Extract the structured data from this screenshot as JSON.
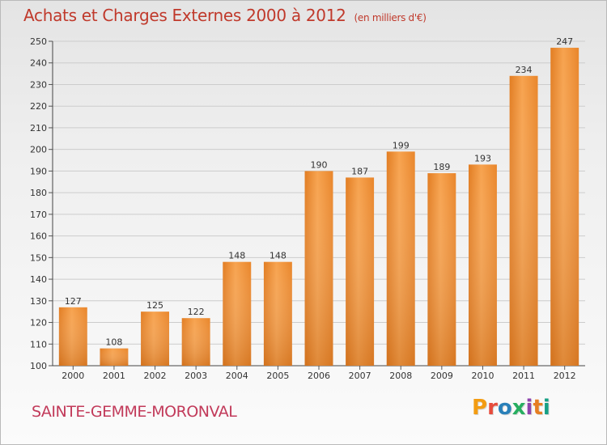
{
  "chart_data": {
    "type": "bar",
    "title": "Achats et Charges Externes 2000 à 2012",
    "unit_note": "(en milliers d'€)",
    "categories": [
      "2000",
      "2001",
      "2002",
      "2003",
      "2004",
      "2005",
      "2006",
      "2007",
      "2008",
      "2009",
      "2010",
      "2011",
      "2012"
    ],
    "values": [
      127,
      108,
      125,
      122,
      148,
      148,
      190,
      187,
      199,
      189,
      193,
      234,
      247
    ],
    "ylim": [
      100,
      250
    ],
    "yticks": [
      100,
      110,
      120,
      130,
      140,
      150,
      160,
      170,
      180,
      190,
      200,
      210,
      220,
      230,
      240,
      250
    ],
    "grid": true,
    "legend": "none",
    "bar_color": "#f0923a",
    "xlabel": "",
    "ylabel": ""
  },
  "footer": {
    "commune": "SAINTE-GEMME-MORONVAL",
    "logo_text": "Proxiti",
    "logo_colors": [
      "#f39c12",
      "#e74c3c",
      "#2980b9",
      "#27ae60",
      "#8e44ad",
      "#e67e22",
      "#16a085"
    ]
  }
}
